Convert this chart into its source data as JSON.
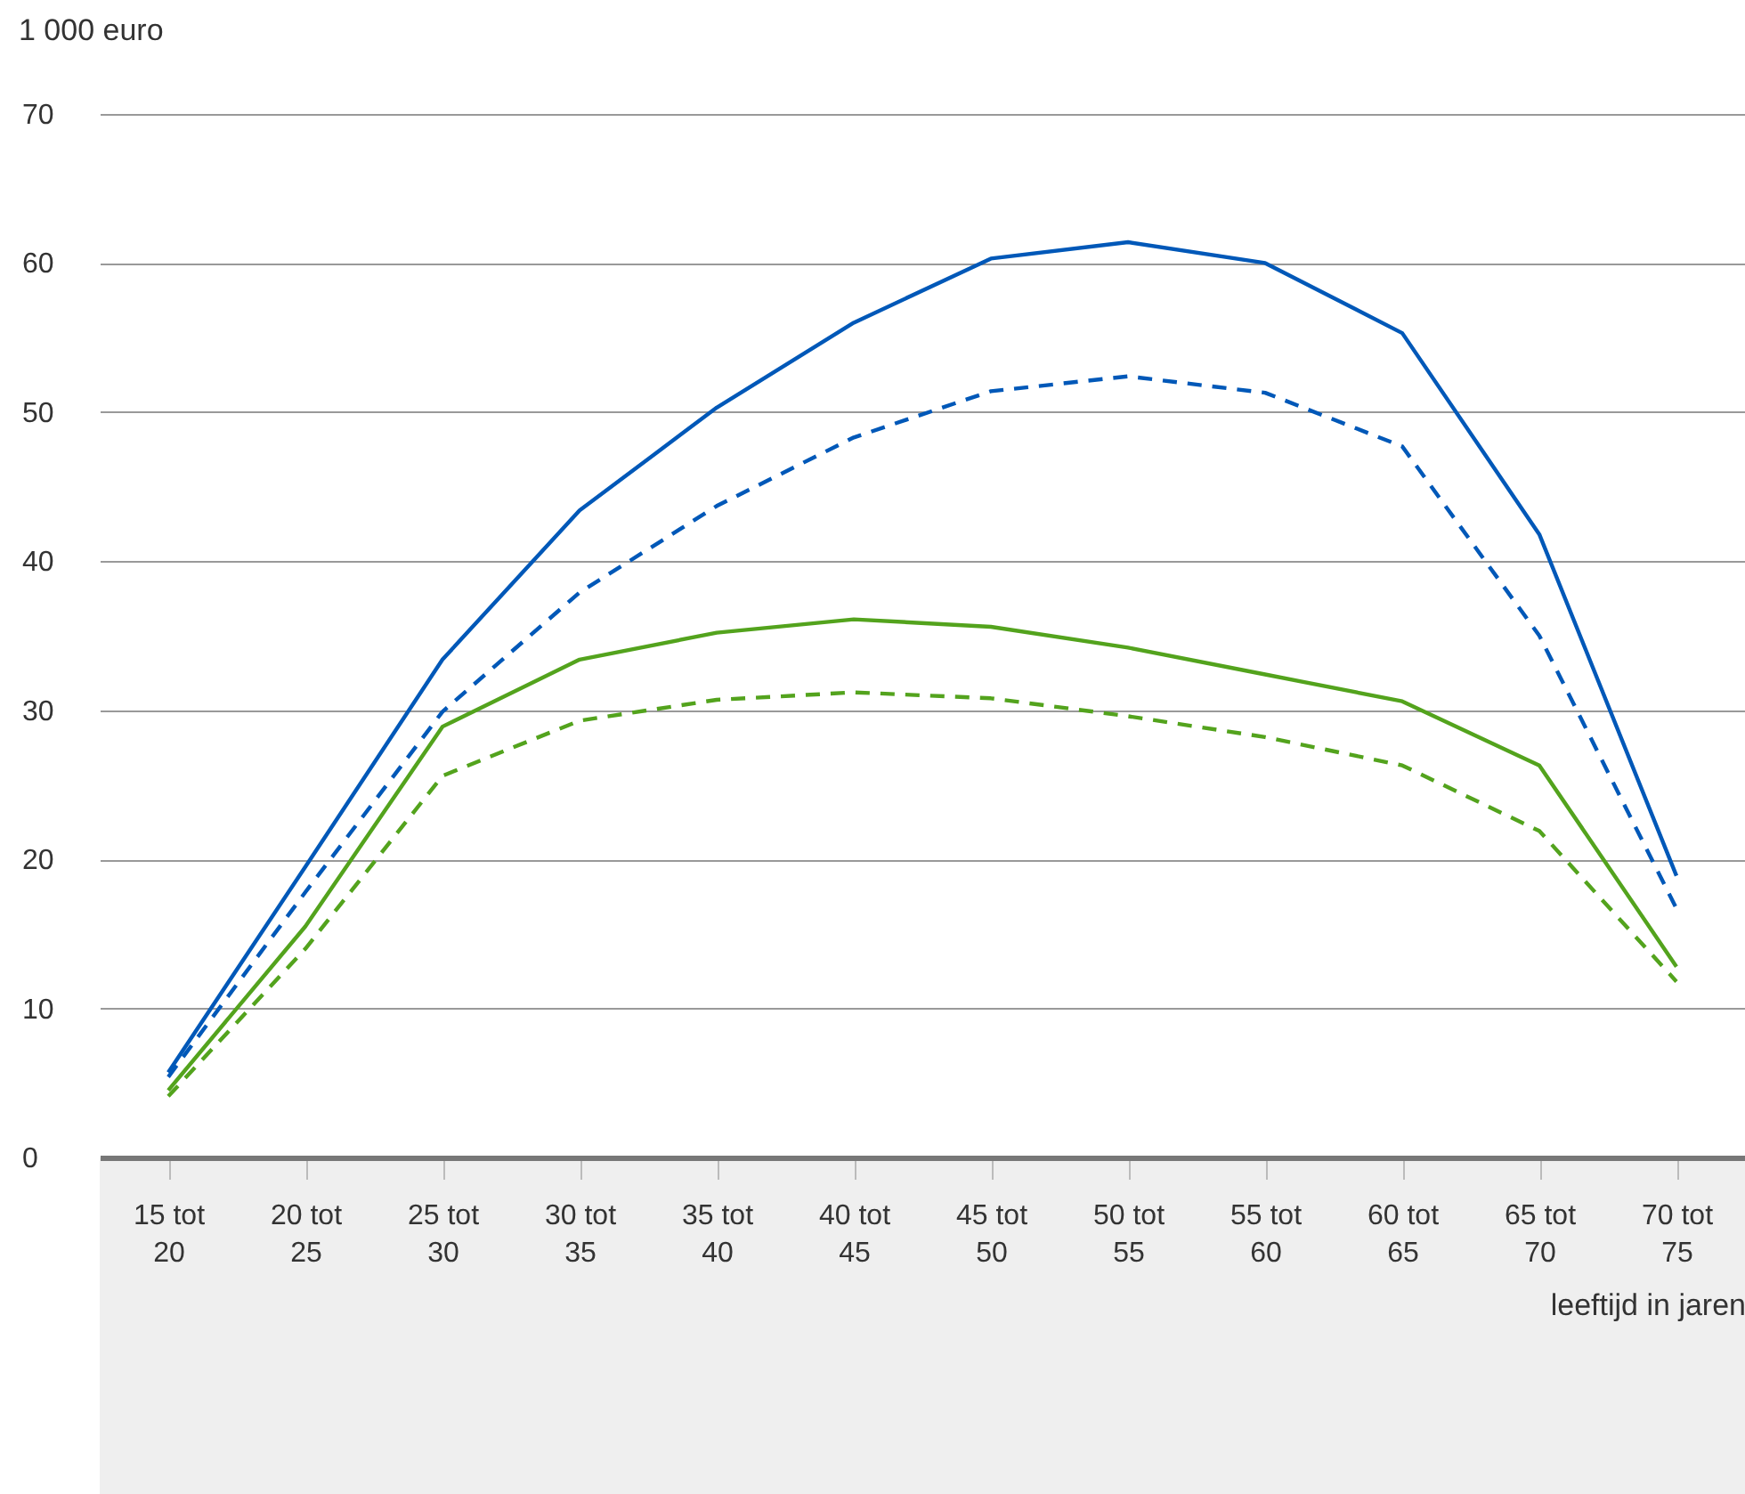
{
  "chart_data": {
    "type": "line",
    "ylabel": "1 000 euro",
    "xlabel": "leeftijd in jaren",
    "categories": [
      "15 tot 20",
      "20 tot 25",
      "25 tot 30",
      "30 tot 35",
      "35 tot 40",
      "40 tot 45",
      "45 tot 50",
      "50 tot 55",
      "55 tot 60",
      "60 tot 65",
      "65 tot 70",
      "70 tot 75"
    ],
    "series": [
      {
        "color": "#0058b8",
        "line_style": "solid",
        "values": [
          5.7,
          19.5,
          33.4,
          43.4,
          50.3,
          56.0,
          60.3,
          61.4,
          60.0,
          55.3,
          41.8,
          18.9
        ]
      },
      {
        "color": "#0058b8",
        "line_style": "dashed",
        "values": [
          5.4,
          17.8,
          29.9,
          37.9,
          43.7,
          48.3,
          51.4,
          52.4,
          51.3,
          47.7,
          35.0,
          16.7
        ]
      },
      {
        "color": "#53a31d",
        "line_style": "solid",
        "values": [
          4.5,
          15.5,
          28.9,
          33.4,
          35.2,
          36.1,
          35.6,
          34.2,
          32.4,
          30.6,
          26.3,
          12.8
        ]
      },
      {
        "color": "#53a31d",
        "line_style": "dashed",
        "values": [
          4.1,
          14.0,
          25.6,
          29.3,
          30.7,
          31.2,
          30.8,
          29.6,
          28.2,
          26.3,
          21.9,
          11.8
        ]
      }
    ],
    "ylim": [
      0,
      70
    ],
    "yticks": [
      0,
      10,
      20,
      30,
      40,
      50,
      60,
      70
    ],
    "grid": "y",
    "marker": "none"
  }
}
